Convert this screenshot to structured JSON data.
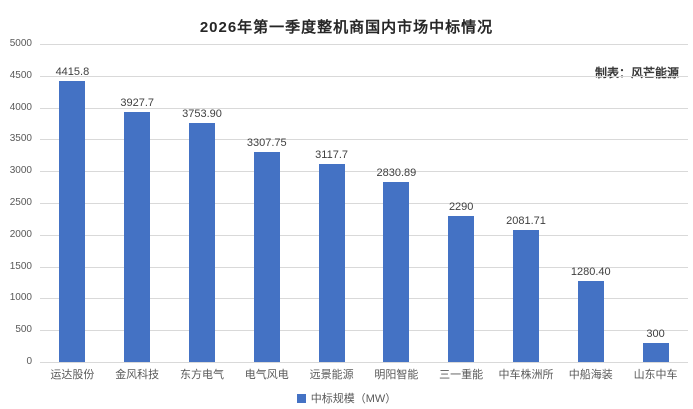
{
  "title": "2026年第一季度整机商国内市场中标情况",
  "credit": "制表：风芒能源",
  "legend": {
    "label": "中标规模（MW）",
    "color": "#4472c4"
  },
  "chart_data": {
    "type": "bar",
    "title": "2026年第一季度整机商国内市场中标情况",
    "categories": [
      "运达股份",
      "金风科技",
      "东方电气",
      "电气风电",
      "远景能源",
      "明阳智能",
      "三一重能",
      "中车株洲所",
      "中船海装",
      "山东中车"
    ],
    "values": [
      4415.8,
      3927.7,
      3753.9,
      3307.75,
      3117.7,
      2830.89,
      2290,
      2081.71,
      1280.4,
      300
    ],
    "value_labels": [
      "4415.8",
      "3927.7",
      "3753.90",
      "3307.75",
      "3117.7",
      "2830.89",
      "2290",
      "2081.71",
      "1280.40",
      "300"
    ],
    "series_name": "中标规模（MW）",
    "xlabel": "",
    "ylabel": "",
    "ylim": [
      0,
      5000
    ],
    "ytick_step": 500,
    "ytick_labels": [
      "0",
      "500",
      "1000",
      "1500",
      "2000",
      "2500",
      "3000",
      "3500",
      "4000",
      "4500",
      "5000"
    ],
    "bar_color": "#4472c4",
    "grid": true,
    "legend_position": "bottom",
    "annotation": "制表：风芒能源"
  }
}
